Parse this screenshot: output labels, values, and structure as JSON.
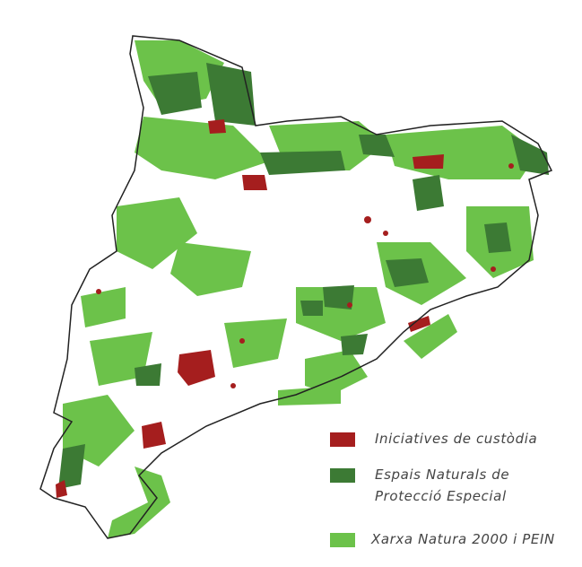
{
  "legend": [
    {
      "label": "Iniciatives de custòdia",
      "color": "#a51e1e"
    },
    {
      "label": "Espais Naturals de Protecció Especial",
      "color": "#3c7a34"
    },
    {
      "label": "Xarxa Natura 2000 i PEIN",
      "color": "#6cc24a"
    }
  ]
}
